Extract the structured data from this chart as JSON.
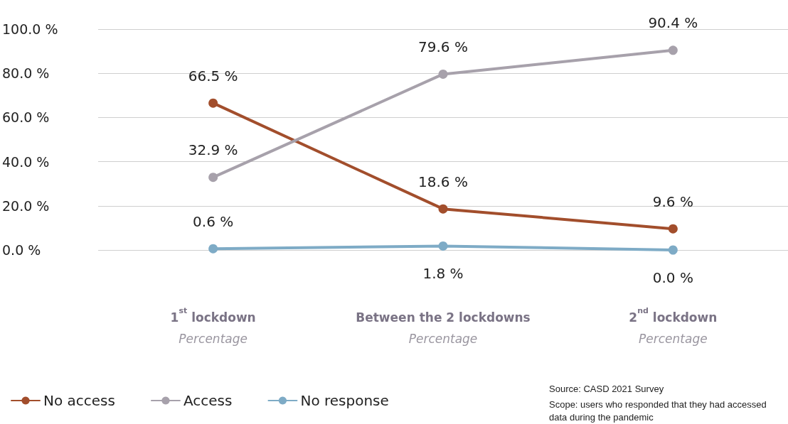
{
  "chart_data": {
    "type": "line",
    "categories": [
      "1$^{st}$ lockdown\nPercentage",
      "Between the 2 lockdowns\nPercentage",
      "2$^{nd}$ lockdown\nPercentage"
    ],
    "series": [
      {
        "name": "No access",
        "color": "#a24e2c",
        "values": [
          66.5,
          18.6,
          9.6
        ],
        "value_labels": [
          "66.5 %",
          "18.6 %",
          "9.6 %"
        ]
      },
      {
        "name": "Access",
        "color": "#a7a1ab",
        "values": [
          32.9,
          79.6,
          90.4
        ],
        "value_labels": [
          "32.9 %",
          "79.6 %",
          "90.4 %"
        ]
      },
      {
        "name": "No response",
        "color": "#7eabc6",
        "values": [
          0.6,
          1.8,
          0.0
        ],
        "value_labels": [
          "0.6 %",
          "1.8 %",
          "0.0 %"
        ]
      }
    ],
    "ylim": [
      0,
      100
    ],
    "yticks": [
      {
        "value": 0,
        "label": "0.0 %"
      },
      {
        "value": 20,
        "label": "20.0 %"
      },
      {
        "value": 40,
        "label": "40.0 %"
      },
      {
        "value": 60,
        "label": "60.0 %"
      },
      {
        "value": 80,
        "label": "80.0 %"
      },
      {
        "value": 100,
        "label": "100.0 %"
      }
    ],
    "grid": "y",
    "legend": "bottom left",
    "marker": "circle",
    "line_style": "solid",
    "annotations": [
      "Source: CASD 2021 Survey",
      "Scope: users who responded that they had accessed data during the pandemic"
    ]
  }
}
